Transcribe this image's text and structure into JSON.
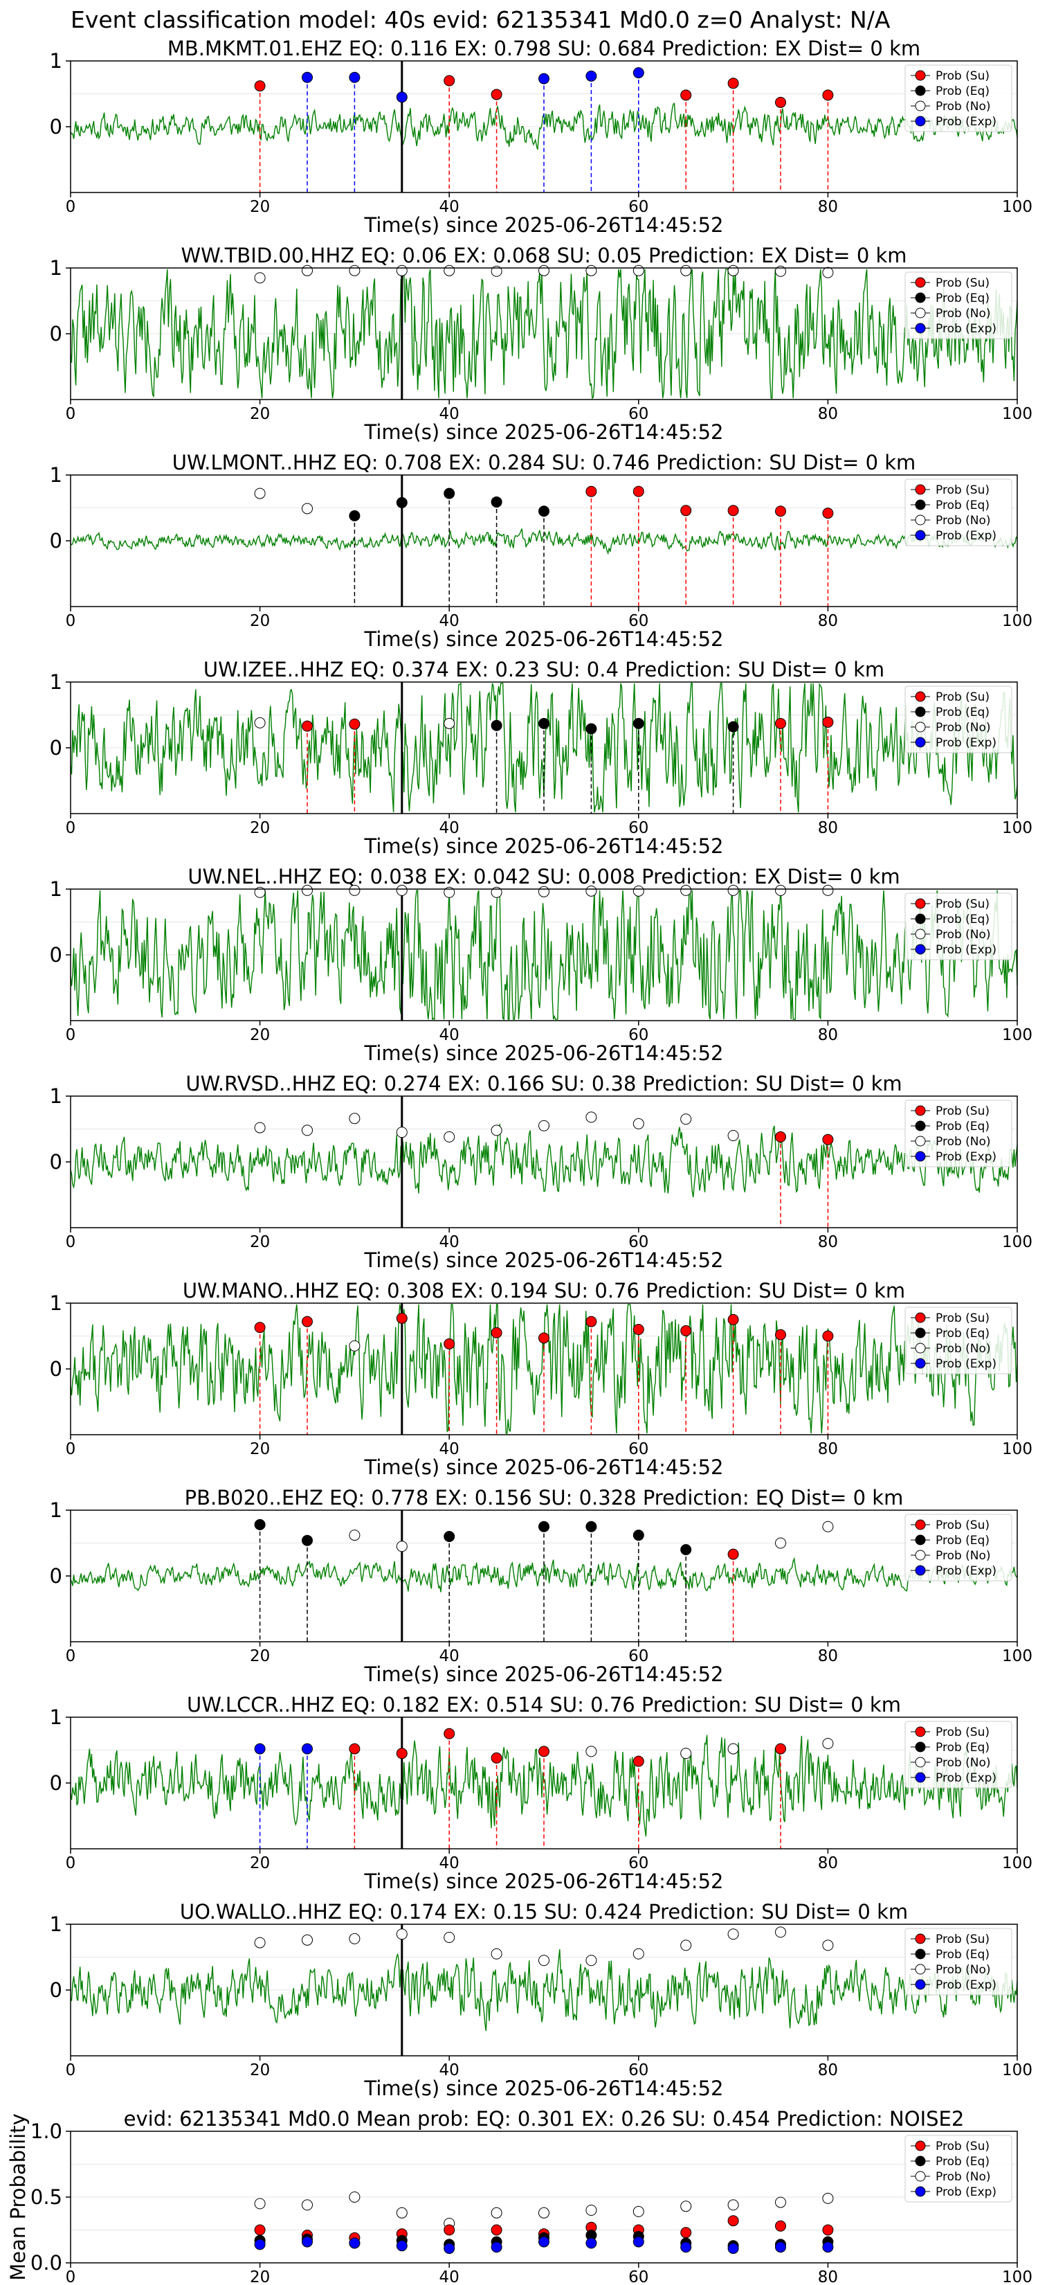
{
  "suptitle": "Event classification model: 40s evid: 62135341 Md0.0 z=0 Analyst: N/A",
  "colors": {
    "su": "#ff0000",
    "eq": "#000000",
    "no": "#ffffff",
    "exp": "#0000ff",
    "trace": "#008000"
  },
  "legend_labels": [
    "Prob (Su)",
    "Prob (Eq)",
    "Prob (No)",
    "Prob (Exp)"
  ],
  "chart_data": [
    {
      "type": "scatter",
      "title": "MB.MKMT.01.EHZ   EQ: 0.116  EX: 0.798  SU: 0.684   Prediction: EX    Dist= 0 km",
      "xlabel": "Time(s) since 2025-06-26T14:45:52",
      "ylabel": "",
      "xlim": [
        0,
        100
      ],
      "ylim": [
        -1,
        1
      ],
      "yticks": [
        0,
        1
      ],
      "xticks": [
        0,
        20,
        40,
        60,
        80,
        100
      ],
      "event_time": 35,
      "legend": "top-right",
      "trace_amplitude": 0.15,
      "trace_seed": 11,
      "points": [
        [
          20,
          0.62,
          "su"
        ],
        [
          25,
          0.75,
          "exp"
        ],
        [
          30,
          0.75,
          "exp"
        ],
        [
          35,
          0.45,
          "exp"
        ],
        [
          40,
          0.7,
          "su"
        ],
        [
          45,
          0.49,
          "su"
        ],
        [
          50,
          0.73,
          "exp"
        ],
        [
          55,
          0.77,
          "exp"
        ],
        [
          60,
          0.82,
          "exp"
        ],
        [
          65,
          0.48,
          "su"
        ],
        [
          70,
          0.66,
          "su"
        ],
        [
          75,
          0.37,
          "su"
        ],
        [
          80,
          0.48,
          "su"
        ]
      ]
    },
    {
      "type": "scatter",
      "title": "WW.TBID.00.HHZ   EQ: 0.06  EX: 0.068  SU: 0.05   Prediction: EX    Dist= 0 km",
      "xlabel": "Time(s) since 2025-06-26T14:45:52",
      "ylabel": "",
      "xlim": [
        0,
        100
      ],
      "ylim": [
        -1,
        1
      ],
      "yticks": [
        0,
        1
      ],
      "xticks": [
        0,
        20,
        40,
        60,
        80,
        100
      ],
      "event_time": 35,
      "legend": "top-right",
      "trace_amplitude": 0.6,
      "trace_seed": 22,
      "points": [
        [
          20,
          0.85,
          "no"
        ],
        [
          25,
          0.96,
          "no"
        ],
        [
          30,
          0.96,
          "no"
        ],
        [
          35,
          0.96,
          "no"
        ],
        [
          40,
          0.96,
          "no"
        ],
        [
          45,
          0.95,
          "no"
        ],
        [
          50,
          0.96,
          "no"
        ],
        [
          55,
          0.96,
          "no"
        ],
        [
          60,
          0.96,
          "no"
        ],
        [
          65,
          0.96,
          "no"
        ],
        [
          70,
          0.96,
          "no"
        ],
        [
          75,
          0.95,
          "no"
        ],
        [
          80,
          0.93,
          "no"
        ]
      ]
    },
    {
      "type": "scatter",
      "title": "UW.LMONT..HHZ   EQ: 0.708  EX: 0.284  SU: 0.746   Prediction: SU    Dist= 0 km",
      "xlabel": "Time(s) since 2025-06-26T14:45:52",
      "ylabel": "",
      "xlim": [
        0,
        100
      ],
      "ylim": [
        -1,
        1
      ],
      "yticks": [
        0,
        1
      ],
      "xticks": [
        0,
        20,
        40,
        60,
        80,
        100
      ],
      "event_time": 35,
      "legend": "top-right",
      "trace_amplitude": 0.08,
      "trace_seed": 33,
      "points": [
        [
          20,
          0.72,
          "no"
        ],
        [
          25,
          0.49,
          "no"
        ],
        [
          30,
          0.38,
          "eq"
        ],
        [
          35,
          0.58,
          "eq"
        ],
        [
          40,
          0.72,
          "eq"
        ],
        [
          45,
          0.59,
          "eq"
        ],
        [
          50,
          0.45,
          "eq"
        ],
        [
          55,
          0.75,
          "su"
        ],
        [
          60,
          0.75,
          "su"
        ],
        [
          65,
          0.46,
          "su"
        ],
        [
          70,
          0.46,
          "su"
        ],
        [
          75,
          0.45,
          "su"
        ],
        [
          80,
          0.42,
          "su"
        ]
      ]
    },
    {
      "type": "scatter",
      "title": "UW.IZEE..HHZ   EQ: 0.374  EX: 0.23  SU: 0.4   Prediction: SU    Dist= 0 km",
      "xlabel": "Time(s) since 2025-06-26T14:45:52",
      "ylabel": "",
      "xlim": [
        0,
        100
      ],
      "ylim": [
        -1,
        1
      ],
      "yticks": [
        0,
        1
      ],
      "xticks": [
        0,
        20,
        40,
        60,
        80,
        100
      ],
      "event_time": 35,
      "legend": "top-right",
      "trace_amplitude": 0.55,
      "trace_seed": 44,
      "points": [
        [
          20,
          0.38,
          "no"
        ],
        [
          25,
          0.33,
          "su"
        ],
        [
          30,
          0.36,
          "su"
        ],
        [
          40,
          0.37,
          "no"
        ],
        [
          45,
          0.34,
          "eq"
        ],
        [
          50,
          0.37,
          "eq"
        ],
        [
          55,
          0.29,
          "eq"
        ],
        [
          60,
          0.37,
          "eq"
        ],
        [
          70,
          0.32,
          "eq"
        ],
        [
          75,
          0.37,
          "su"
        ],
        [
          80,
          0.39,
          "su"
        ]
      ]
    },
    {
      "type": "scatter",
      "title": "UW.NEL..HHZ   EQ: 0.038  EX: 0.042  SU: 0.008   Prediction: EX    Dist= 0 km",
      "xlabel": "Time(s) since 2025-06-26T14:45:52",
      "ylabel": "",
      "xlim": [
        0,
        100
      ],
      "ylim": [
        -1,
        1
      ],
      "yticks": [
        0,
        1
      ],
      "xticks": [
        0,
        20,
        40,
        60,
        80,
        100
      ],
      "event_time": 35,
      "legend": "top-right",
      "trace_amplitude": 0.65,
      "trace_seed": 55,
      "points": [
        [
          20,
          0.95,
          "no"
        ],
        [
          25,
          0.98,
          "no"
        ],
        [
          30,
          0.98,
          "no"
        ],
        [
          35,
          0.98,
          "no"
        ],
        [
          40,
          0.95,
          "no"
        ],
        [
          45,
          0.95,
          "no"
        ],
        [
          50,
          0.96,
          "no"
        ],
        [
          55,
          0.97,
          "no"
        ],
        [
          60,
          0.97,
          "no"
        ],
        [
          65,
          0.98,
          "no"
        ],
        [
          70,
          0.98,
          "no"
        ],
        [
          75,
          0.98,
          "no"
        ],
        [
          80,
          0.98,
          "no"
        ]
      ]
    },
    {
      "type": "scatter",
      "title": "UW.RVSD..HHZ   EQ: 0.274  EX: 0.166  SU: 0.38   Prediction: SU    Dist= 0 km",
      "xlabel": "Time(s) since 2025-06-26T14:45:52",
      "ylabel": "",
      "xlim": [
        0,
        100
      ],
      "ylim": [
        -1,
        1
      ],
      "yticks": [
        0,
        1
      ],
      "xticks": [
        0,
        20,
        40,
        60,
        80,
        100
      ],
      "event_time": 35,
      "legend": "top-right",
      "trace_amplitude": 0.25,
      "trace_seed": 66,
      "points": [
        [
          20,
          0.52,
          "no"
        ],
        [
          25,
          0.48,
          "no"
        ],
        [
          30,
          0.66,
          "no"
        ],
        [
          35,
          0.45,
          "no"
        ],
        [
          40,
          0.38,
          "no"
        ],
        [
          45,
          0.48,
          "no"
        ],
        [
          50,
          0.55,
          "no"
        ],
        [
          55,
          0.68,
          "no"
        ],
        [
          60,
          0.58,
          "no"
        ],
        [
          65,
          0.65,
          "no"
        ],
        [
          70,
          0.4,
          "no"
        ],
        [
          75,
          0.38,
          "su"
        ],
        [
          80,
          0.34,
          "su"
        ]
      ]
    },
    {
      "type": "scatter",
      "title": "UW.MANO..HHZ   EQ: 0.308  EX: 0.194  SU: 0.76   Prediction: SU    Dist= 0 km",
      "xlabel": "Time(s) since 2025-06-26T14:45:52",
      "ylabel": "",
      "xlim": [
        0,
        100
      ],
      "ylim": [
        -1,
        1
      ],
      "yticks": [
        0,
        1
      ],
      "xticks": [
        0,
        20,
        40,
        60,
        80,
        100
      ],
      "event_time": 35,
      "legend": "top-right",
      "trace_amplitude": 0.55,
      "trace_seed": 77,
      "points": [
        [
          20,
          0.63,
          "su"
        ],
        [
          25,
          0.72,
          "su"
        ],
        [
          30,
          0.35,
          "no"
        ],
        [
          35,
          0.77,
          "su"
        ],
        [
          40,
          0.38,
          "su"
        ],
        [
          45,
          0.55,
          "su"
        ],
        [
          50,
          0.47,
          "su"
        ],
        [
          55,
          0.72,
          "su"
        ],
        [
          60,
          0.6,
          "su"
        ],
        [
          65,
          0.58,
          "su"
        ],
        [
          70,
          0.75,
          "su"
        ],
        [
          75,
          0.52,
          "su"
        ],
        [
          80,
          0.5,
          "su"
        ]
      ]
    },
    {
      "type": "scatter",
      "title": "PB.B020..EHZ   EQ: 0.778  EX: 0.156  SU: 0.328   Prediction: EQ    Dist= 0 km",
      "xlabel": "Time(s) since 2025-06-26T14:45:52",
      "ylabel": "",
      "xlim": [
        0,
        100
      ],
      "ylim": [
        -1,
        1
      ],
      "yticks": [
        0,
        1
      ],
      "xticks": [
        0,
        20,
        40,
        60,
        80,
        100
      ],
      "event_time": 35,
      "legend": "top-right",
      "trace_amplitude": 0.12,
      "trace_seed": 88,
      "points": [
        [
          20,
          0.78,
          "eq"
        ],
        [
          25,
          0.54,
          "eq"
        ],
        [
          30,
          0.62,
          "no"
        ],
        [
          35,
          0.45,
          "no"
        ],
        [
          40,
          0.6,
          "eq"
        ],
        [
          50,
          0.75,
          "eq"
        ],
        [
          55,
          0.75,
          "eq"
        ],
        [
          60,
          0.62,
          "eq"
        ],
        [
          65,
          0.4,
          "eq"
        ],
        [
          70,
          0.33,
          "su"
        ],
        [
          75,
          0.5,
          "no"
        ],
        [
          80,
          0.75,
          "no"
        ]
      ]
    },
    {
      "type": "scatter",
      "title": "UW.LCCR..HHZ   EQ: 0.182  EX: 0.514  SU: 0.76   Prediction: SU    Dist= 0 km",
      "xlabel": "Time(s) since 2025-06-26T14:45:52",
      "ylabel": "",
      "xlim": [
        0,
        100
      ],
      "ylim": [
        -1,
        1
      ],
      "yticks": [
        0,
        1
      ],
      "xticks": [
        0,
        20,
        40,
        60,
        80,
        100
      ],
      "event_time": 35,
      "legend": "top-right",
      "trace_amplitude": 0.35,
      "trace_seed": 99,
      "points": [
        [
          20,
          0.52,
          "exp"
        ],
        [
          25,
          0.52,
          "exp"
        ],
        [
          30,
          0.52,
          "su"
        ],
        [
          35,
          0.45,
          "su"
        ],
        [
          40,
          0.75,
          "su"
        ],
        [
          45,
          0.38,
          "su"
        ],
        [
          50,
          0.48,
          "su"
        ],
        [
          55,
          0.48,
          "no"
        ],
        [
          60,
          0.33,
          "su"
        ],
        [
          65,
          0.45,
          "no"
        ],
        [
          70,
          0.52,
          "no"
        ],
        [
          75,
          0.52,
          "su"
        ],
        [
          80,
          0.6,
          "no"
        ]
      ]
    },
    {
      "type": "scatter",
      "title": "UO.WALLO..HHZ   EQ: 0.174  EX: 0.15  SU: 0.424   Prediction: SU    Dist= 0 km",
      "xlabel": "Time(s) since 2025-06-26T14:45:52",
      "ylabel": "",
      "xlim": [
        0,
        100
      ],
      "ylim": [
        -1,
        1
      ],
      "yticks": [
        0,
        1
      ],
      "xticks": [
        0,
        20,
        40,
        60,
        80,
        100
      ],
      "event_time": 35,
      "legend": "top-right",
      "trace_amplitude": 0.28,
      "trace_seed": 111,
      "points": [
        [
          20,
          0.72,
          "no"
        ],
        [
          25,
          0.76,
          "no"
        ],
        [
          30,
          0.78,
          "no"
        ],
        [
          35,
          0.85,
          "no"
        ],
        [
          40,
          0.8,
          "no"
        ],
        [
          45,
          0.55,
          "no"
        ],
        [
          50,
          0.45,
          "no"
        ],
        [
          55,
          0.45,
          "no"
        ],
        [
          60,
          0.55,
          "no"
        ],
        [
          65,
          0.68,
          "no"
        ],
        [
          70,
          0.85,
          "no"
        ],
        [
          75,
          0.88,
          "no"
        ],
        [
          80,
          0.68,
          "no"
        ]
      ]
    },
    {
      "type": "scatter",
      "title": "evid: 62135341  Md0.0   Mean prob:   EQ: 0.301  EX: 0.26  SU: 0.454   Prediction: NOISE2",
      "xlabel": "",
      "ylabel": "Mean Probability",
      "xlim": [
        0,
        100
      ],
      "ylim": [
        0,
        1
      ],
      "yticks": [
        0,
        0.5,
        1.0
      ],
      "xticks": [
        0,
        20,
        40,
        60,
        80,
        100
      ],
      "legend": "top-right",
      "series": [
        {
          "name": "Prob (No)",
          "key": "no",
          "x": [
            20,
            25,
            30,
            35,
            40,
            45,
            50,
            55,
            60,
            65,
            70,
            75,
            80
          ],
          "values": [
            0.45,
            0.44,
            0.5,
            0.38,
            0.3,
            0.38,
            0.38,
            0.4,
            0.39,
            0.43,
            0.44,
            0.46,
            0.49
          ]
        },
        {
          "name": "Prob (Su)",
          "key": "su",
          "x": [
            20,
            25,
            30,
            35,
            40,
            45,
            50,
            55,
            60,
            65,
            70,
            75,
            80
          ],
          "values": [
            0.25,
            0.21,
            0.19,
            0.22,
            0.25,
            0.25,
            0.22,
            0.27,
            0.25,
            0.23,
            0.32,
            0.28,
            0.25
          ]
        },
        {
          "name": "Prob (Eq)",
          "key": "eq",
          "x": [
            20,
            25,
            30,
            35,
            40,
            45,
            50,
            55,
            60,
            65,
            70,
            75,
            80
          ],
          "values": [
            0.17,
            0.18,
            0.15,
            0.17,
            0.14,
            0.16,
            0.19,
            0.21,
            0.2,
            0.15,
            0.13,
            0.14,
            0.16
          ]
        },
        {
          "name": "Prob (Exp)",
          "key": "exp",
          "x": [
            20,
            25,
            30,
            35,
            40,
            45,
            50,
            55,
            60,
            65,
            70,
            75,
            80
          ],
          "values": [
            0.14,
            0.16,
            0.15,
            0.13,
            0.11,
            0.12,
            0.16,
            0.15,
            0.16,
            0.12,
            0.11,
            0.12,
            0.12
          ]
        }
      ]
    }
  ]
}
